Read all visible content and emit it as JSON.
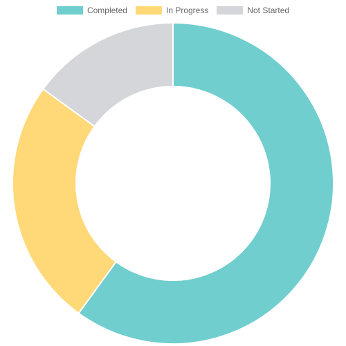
{
  "chart_data": {
    "type": "pie",
    "variant": "doughnut",
    "legend_position": "top",
    "categories": [
      "Completed",
      "In Progress",
      "Not Started"
    ],
    "values": [
      60,
      25,
      15
    ],
    "colors": [
      "#71CECE",
      "#FFD878",
      "#D5D6DA"
    ]
  }
}
